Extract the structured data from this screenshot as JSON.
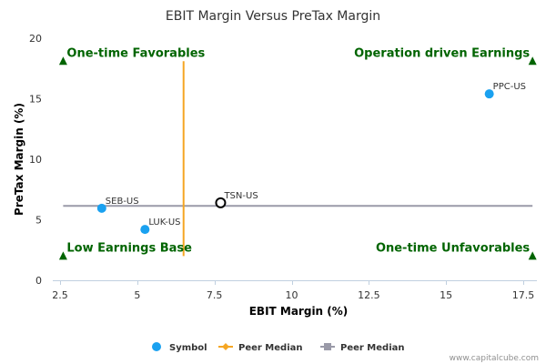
{
  "chart_data": {
    "type": "scatter",
    "title": "EBIT Margin Versus PreTax Margin",
    "xlabel": "EBIT Margin (%)",
    "ylabel": "PreTax Margin (%)",
    "xlim": [
      2.5,
      17.5
    ],
    "ylim": [
      0,
      20
    ],
    "xticks": [
      "2.5",
      "5",
      "7.5",
      "10",
      "12.5",
      "15",
      "17.5"
    ],
    "yticks": [
      "0",
      "5",
      "10",
      "15",
      "20"
    ],
    "xtick_values": [
      2.5,
      5,
      7.5,
      10,
      12.5,
      15,
      17.5
    ],
    "ytick_values": [
      0,
      5,
      10,
      15,
      20
    ],
    "points": [
      {
        "label": "SEB-US",
        "x": 3.85,
        "y": 5.95,
        "highlight": false
      },
      {
        "label": "LUK-US",
        "x": 5.25,
        "y": 4.2,
        "highlight": false
      },
      {
        "label": "TSN-US",
        "x": 7.7,
        "y": 6.4,
        "highlight": true
      },
      {
        "label": "PPC-US",
        "x": 16.4,
        "y": 15.4,
        "highlight": false
      }
    ],
    "median_x": {
      "name": "Peer Median",
      "value": 6.5,
      "y_range": [
        2.0,
        18.1
      ]
    },
    "median_y": {
      "name": "Peer Median",
      "value": 6.15,
      "x_range": [
        2.6,
        17.8
      ]
    },
    "quadrants": [
      {
        "label": "One-time Favorables",
        "x": 2.6,
        "y": 18.1,
        "side": "left"
      },
      {
        "label": "Operation driven Earnings",
        "x": 17.8,
        "y": 18.1,
        "side": "right"
      },
      {
        "label": "Low Earnings Base",
        "x": 2.6,
        "y": 2.0,
        "side": "left"
      },
      {
        "label": "One-time Unfavorables",
        "x": 17.8,
        "y": 2.0,
        "side": "right"
      }
    ],
    "legend": [
      {
        "label": "Symbol",
        "marker": "circle"
      },
      {
        "label": "Peer Median",
        "marker": "diamond-line"
      },
      {
        "label": "Peer Median",
        "marker": "square-line"
      }
    ],
    "legend_position": "bottom-center",
    "grid": false
  },
  "colors": {
    "point": "#1aa1f0",
    "highlight_fill": "#ffffff",
    "highlight_stroke": "#000000",
    "median_x_line": "#f5a623",
    "median_y_line": "#9a9aa8",
    "quadrant": "#006400",
    "axis": "#c0d0e0"
  },
  "credit": "www.capitalcube.com"
}
